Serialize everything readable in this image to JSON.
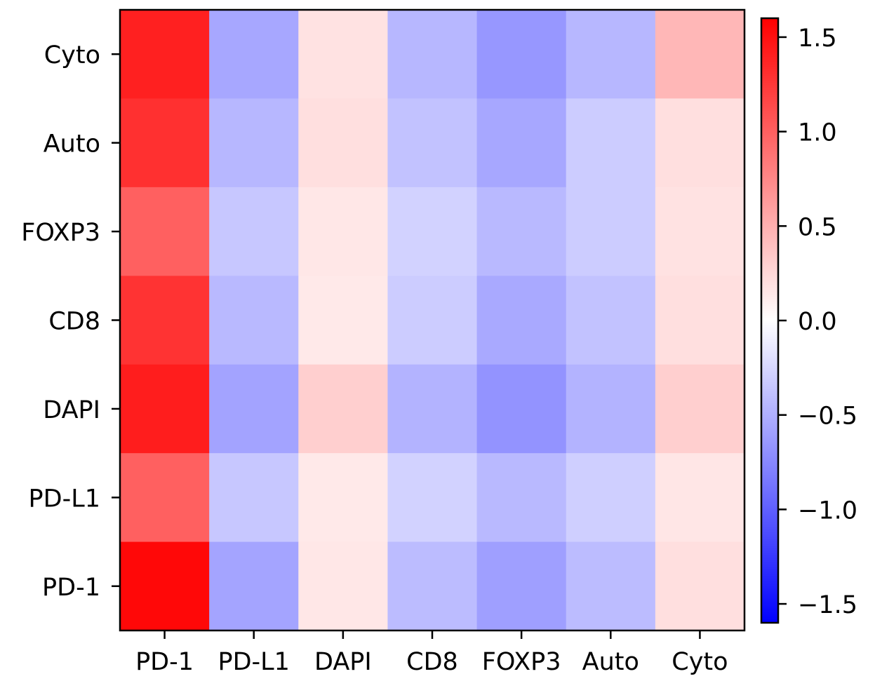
{
  "chart_data": {
    "type": "heatmap",
    "title": "",
    "xlabel": "",
    "ylabel": "",
    "x_categories": [
      "PD-1",
      "PD-L1",
      "DAPI",
      "CD8",
      "FOXP3",
      "Auto",
      "Cyto"
    ],
    "y_categories_top_to_bottom": [
      "Cyto",
      "Auto",
      "FOXP3",
      "CD8",
      "DAPI",
      "PD-L1",
      "PD-1"
    ],
    "values_top_to_bottom": [
      [
        1.4,
        -0.55,
        0.18,
        -0.45,
        -0.65,
        -0.45,
        0.45
      ],
      [
        1.3,
        -0.45,
        0.2,
        -0.38,
        -0.55,
        -0.32,
        0.2
      ],
      [
        1.0,
        -0.35,
        0.15,
        -0.28,
        -0.44,
        -0.32,
        0.18
      ],
      [
        1.28,
        -0.44,
        0.14,
        -0.32,
        -0.54,
        -0.38,
        0.2
      ],
      [
        1.42,
        -0.58,
        0.3,
        -0.48,
        -0.68,
        -0.48,
        0.3
      ],
      [
        1.0,
        -0.35,
        0.14,
        -0.28,
        -0.44,
        -0.3,
        0.16
      ],
      [
        1.55,
        -0.57,
        0.15,
        -0.42,
        -0.6,
        -0.42,
        0.2
      ]
    ],
    "colormap": "bwr",
    "vmin": -1.6,
    "vmax": 1.6,
    "colorbar": {
      "ticks": [
        1.5,
        1.0,
        0.5,
        0.0,
        -0.5,
        -1.0,
        -1.5
      ],
      "tick_labels": [
        "1.5",
        "1.0",
        "0.5",
        "0.0",
        "−0.5",
        "−1.0",
        "−1.5"
      ]
    }
  }
}
